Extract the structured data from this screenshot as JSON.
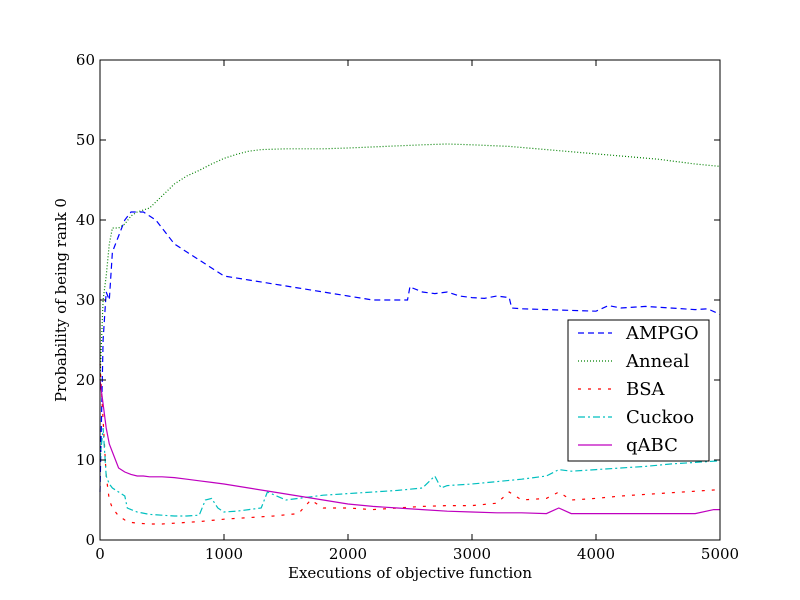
{
  "chart_data": {
    "type": "line",
    "title": "",
    "xlabel": "Executions of objective function",
    "ylabel": "Probability of being rank 0",
    "xlim": [
      0,
      5000
    ],
    "ylim": [
      0,
      60
    ],
    "xticks": [
      0,
      1000,
      2000,
      3000,
      4000,
      5000
    ],
    "yticks": [
      0,
      10,
      20,
      30,
      40,
      50,
      60
    ],
    "grid": false,
    "legend_position": "center-right",
    "series": [
      {
        "name": "AMPGO",
        "color": "#0000ff",
        "dash": "dashed",
        "x": [
          0,
          25,
          50,
          75,
          100,
          125,
          150,
          175,
          200,
          250,
          300,
          350,
          400,
          450,
          500,
          600,
          700,
          800,
          900,
          1000,
          1200,
          1400,
          1600,
          1800,
          2000,
          2200,
          2400,
          2480,
          2500,
          2520,
          2600,
          2700,
          2800,
          2900,
          3000,
          3100,
          3200,
          3300,
          3320,
          3400,
          3600,
          3800,
          4000,
          4100,
          4200,
          4400,
          4600,
          4800,
          4900,
          5000
        ],
        "y": [
          6,
          25,
          31,
          30,
          36,
          37,
          38,
          39,
          40,
          41,
          41,
          41,
          40.5,
          40,
          39,
          37,
          36,
          35,
          34,
          33,
          32.5,
          32,
          31.5,
          31,
          30.5,
          30,
          30,
          30,
          31.7,
          31.5,
          31,
          30.8,
          31,
          30.5,
          30.3,
          30.2,
          30.5,
          30.3,
          29,
          28.9,
          28.8,
          28.7,
          28.6,
          29.3,
          29,
          29.2,
          29,
          28.8,
          28.9,
          28.2
        ]
      },
      {
        "name": "Anneal",
        "color": "#008000",
        "dash": "dotted",
        "x": [
          0,
          25,
          50,
          75,
          100,
          150,
          200,
          250,
          300,
          400,
          500,
          600,
          700,
          800,
          900,
          1000,
          1100,
          1200,
          1300,
          1500,
          1800,
          2000,
          2300,
          2600,
          2800,
          3000,
          3300,
          3600,
          3900,
          4200,
          4500,
          4800,
          5000
        ],
        "y": [
          20,
          30,
          33,
          37,
          39,
          39,
          39.5,
          40.5,
          41,
          41.5,
          43,
          44.5,
          45.5,
          46.2,
          47,
          47.7,
          48.2,
          48.6,
          48.8,
          48.9,
          48.9,
          49,
          49.2,
          49.4,
          49.5,
          49.4,
          49.2,
          48.8,
          48.4,
          48,
          47.6,
          47,
          46.7
        ]
      },
      {
        "name": "BSA",
        "color": "#ff0000",
        "dash": "dashed-sparse",
        "x": [
          0,
          25,
          50,
          75,
          100,
          150,
          200,
          250,
          300,
          400,
          500,
          600,
          700,
          800,
          1000,
          1200,
          1400,
          1600,
          1700,
          1800,
          2000,
          2200,
          2400,
          2600,
          2800,
          3000,
          3200,
          3300,
          3400,
          3600,
          3700,
          3800,
          4000,
          4200,
          4400,
          4600,
          4800,
          5000
        ],
        "y": [
          22,
          15,
          8,
          5,
          4,
          3,
          2.5,
          2.2,
          2.1,
          2,
          2,
          2.1,
          2.2,
          2.3,
          2.6,
          2.8,
          3,
          3.3,
          5,
          4,
          4,
          3.8,
          4,
          4.2,
          4.3,
          4.3,
          4.6,
          6,
          5,
          5.2,
          6,
          5,
          5.2,
          5.5,
          5.7,
          5.9,
          6.1,
          6.3
        ]
      },
      {
        "name": "Cuckoo",
        "color": "#00bfbf",
        "dash": "dashdot",
        "x": [
          0,
          25,
          50,
          75,
          100,
          150,
          200,
          220,
          250,
          300,
          400,
          500,
          600,
          700,
          800,
          850,
          900,
          950,
          1000,
          1100,
          1200,
          1300,
          1350,
          1500,
          1600,
          1700,
          1800,
          2000,
          2200,
          2400,
          2600,
          2700,
          2750,
          2800,
          3000,
          3200,
          3400,
          3600,
          3700,
          3800,
          4000,
          4200,
          4400,
          4600,
          4800,
          5000
        ],
        "y": [
          10,
          14,
          8,
          7,
          6.5,
          6,
          5.5,
          4,
          3.8,
          3.5,
          3.2,
          3.1,
          3,
          3,
          3.1,
          5,
          5.2,
          4,
          3.5,
          3.6,
          3.8,
          4,
          6,
          5,
          5.2,
          5.4,
          5.6,
          5.8,
          6,
          6.2,
          6.5,
          8,
          6.5,
          6.8,
          7,
          7.3,
          7.6,
          8,
          8.8,
          8.6,
          8.8,
          9,
          9.2,
          9.5,
          9.7,
          9.9
        ]
      },
      {
        "name": "qABC",
        "color": "#bf00bf",
        "dash": "solid",
        "x": [
          0,
          25,
          50,
          75,
          100,
          150,
          200,
          250,
          300,
          350,
          400,
          500,
          600,
          700,
          800,
          900,
          1000,
          1200,
          1400,
          1600,
          1800,
          2000,
          2200,
          2400,
          2600,
          2800,
          3000,
          3200,
          3400,
          3600,
          3700,
          3800,
          4000,
          4200,
          4400,
          4600,
          4800,
          4950,
          5000
        ],
        "y": [
          20,
          17,
          14,
          12,
          11,
          9,
          8.5,
          8.2,
          8,
          8,
          7.9,
          7.9,
          7.8,
          7.6,
          7.4,
          7.2,
          7,
          6.5,
          6,
          5.5,
          5,
          4.5,
          4.2,
          4,
          3.8,
          3.6,
          3.5,
          3.4,
          3.4,
          3.3,
          4,
          3.3,
          3.3,
          3.3,
          3.3,
          3.3,
          3.3,
          3.8,
          3.8
        ]
      }
    ]
  }
}
